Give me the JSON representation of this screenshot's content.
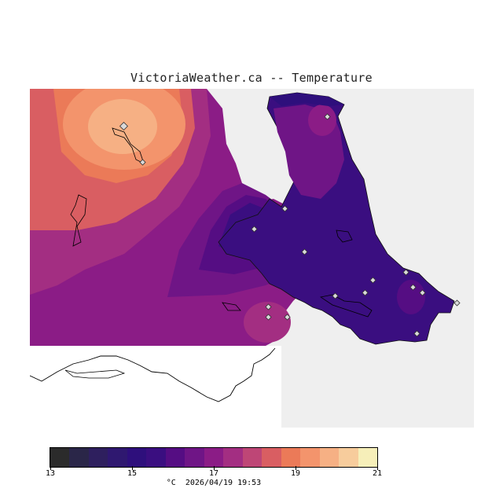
{
  "title": "VictoriaWeather.ca -- Temperature",
  "legend": {
    "colors": [
      "#2b2b2b",
      "#2a2648",
      "#2e1f5e",
      "#2f1870",
      "#2e0f7c",
      "#3a0e80",
      "#550d83",
      "#6f1586",
      "#8b1c86",
      "#a32e82",
      "#be4676",
      "#d95e62",
      "#eb7a58",
      "#f3946c",
      "#f6b084",
      "#f7cc9c",
      "#f6efb9"
    ],
    "ticks": [
      "13",
      "15",
      "17",
      "19",
      "21"
    ],
    "unit": "°C",
    "timestamp": "2026/04/19 19:53"
  },
  "map": {
    "background_ocean": "#efefef",
    "no_data": "#ffffff",
    "station_marker": "diamond"
  }
}
